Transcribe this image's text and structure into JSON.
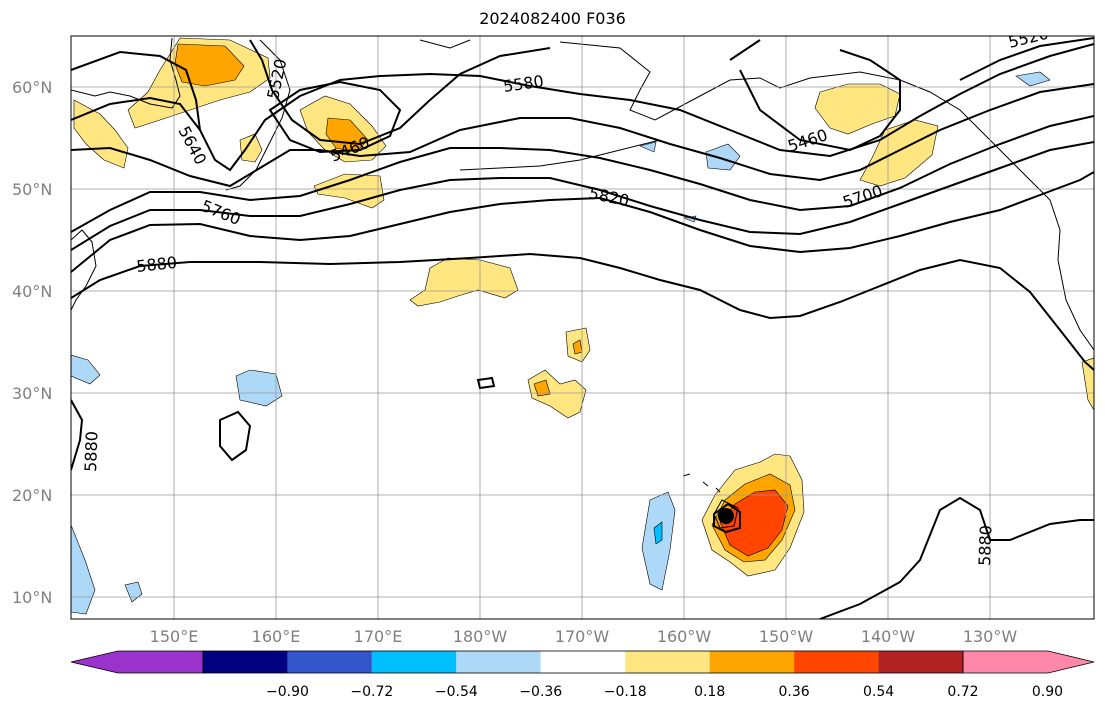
{
  "title": "2024082400 F036",
  "lat_labels": [
    "60°N",
    "50°N",
    "40°N",
    "30°N",
    "20°N",
    "10°N"
  ],
  "lon_labels": [
    "150°E",
    "160°E",
    "170°E",
    "180°W",
    "170°W",
    "160°W",
    "150°W",
    "140°W",
    "130°W"
  ],
  "contour_labels": [
    "5640",
    "5520",
    "5460",
    "5760",
    "5880",
    "5580",
    "5820",
    "5460",
    "5700",
    "5880",
    "5880",
    "5520"
  ],
  "colorbar": {
    "ticks": [
      "−0.90",
      "−0.72",
      "−0.54",
      "−0.36",
      "−0.18",
      "0.18",
      "0.36",
      "0.54",
      "0.72",
      "0.90"
    ],
    "colors": [
      "#9933cc",
      "#000080",
      "#3355cc",
      "#00bfff",
      "#add8f8",
      "#ffffff",
      "#ffe680",
      "#ffa500",
      "#ff4500",
      "#b22222",
      "#ff88aa"
    ]
  },
  "colors": {
    "land_line": "#000000",
    "grid": "#9a9a9a",
    "contour": "#000000"
  }
}
